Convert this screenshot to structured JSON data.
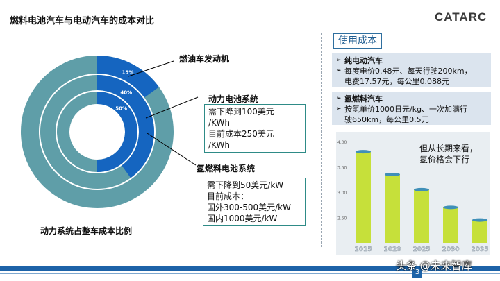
{
  "slide": {
    "title": "燃料电池汽车与电动汽车的成本对比",
    "logo_text": "CATARC",
    "bottom_caption": "动力系统占整车成本比例",
    "page_number": "3",
    "watermark": "头条 @未来智库"
  },
  "donut": {
    "outer_color": "#5f9ea8",
    "highlight_color": "#1565c0",
    "rings": [
      {
        "label": "燃油车发动机",
        "percent": 15,
        "percent_text": "15%"
      },
      {
        "label": "动力电池系统",
        "percent": 40,
        "percent_text": "40%"
      },
      {
        "label": "氢燃料电池系统",
        "percent": 50,
        "percent_text": "50%"
      }
    ]
  },
  "battery_box": {
    "lines": [
      "需下降到100美元",
      "/KWh",
      "目前成本250美元",
      "/KWh"
    ]
  },
  "fuelcell_box": {
    "lines": [
      "需下降到50美元/kW",
      "目前成本：",
      "国外300-500美元/kW",
      "国内1000美元/kW"
    ]
  },
  "usage_cost": {
    "header": "使用成本",
    "ev": {
      "title": "纯电动汽车",
      "bullets": [
        "每度电价0.48元、每天行驶200km，",
        "电费17.57元，每公里0.088元"
      ]
    },
    "hydrogen": {
      "title": "氢燃料汽车",
      "bullets": [
        "按氢单价1000日元/kg、一次加满行",
        "驶650km，每公里0.5元"
      ]
    }
  },
  "chart_data": {
    "type": "bar",
    "categories": [
      "2015",
      "2020",
      "2025",
      "2030",
      "2035"
    ],
    "values": [
      3.8,
      3.35,
      3.05,
      2.7,
      2.45
    ],
    "y_ticks": [
      "4.00",
      "3.50",
      "3.00",
      "2.50"
    ],
    "ylim": [
      2.0,
      4.0
    ],
    "annotation": [
      "但从长期来看，",
      "氢价格会下行"
    ],
    "bar_color": "#c6e03a"
  }
}
